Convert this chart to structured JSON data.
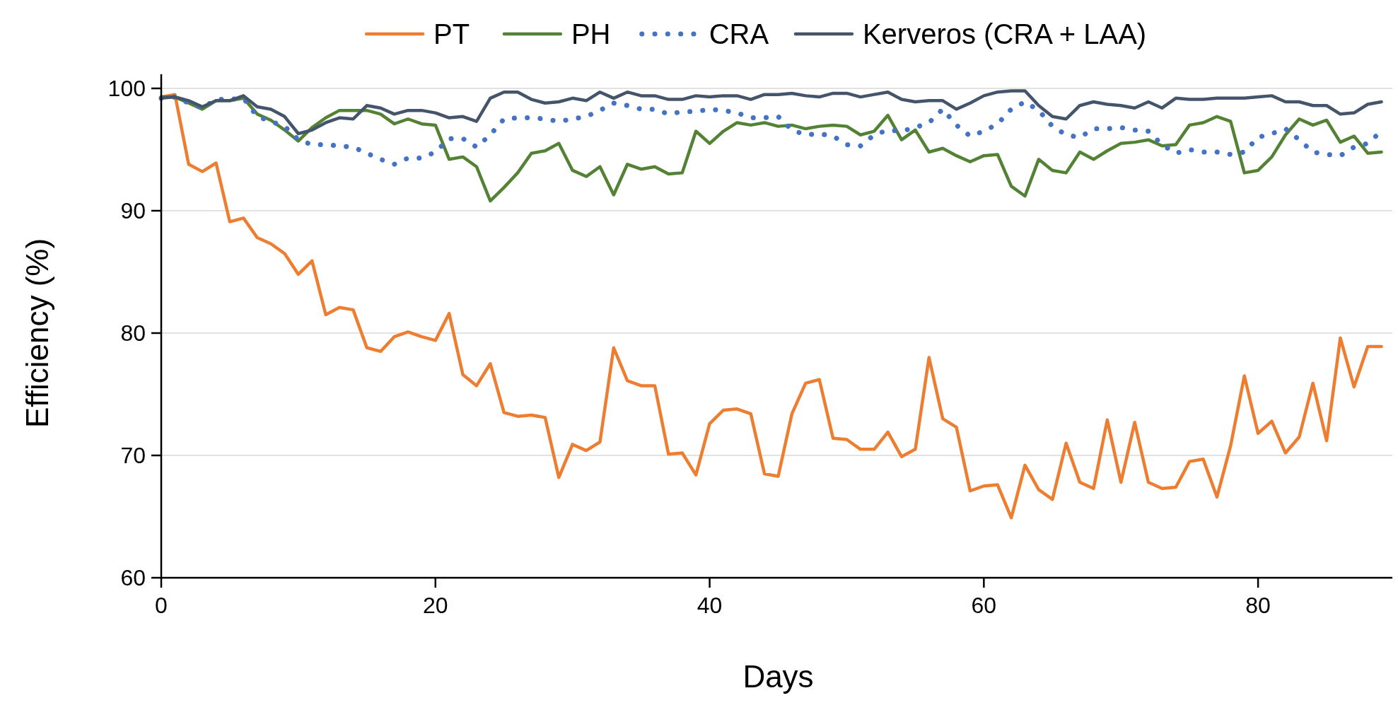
{
  "chart_data": {
    "type": "line",
    "xlabel": "Days",
    "ylabel": "Efficiency (%)",
    "xlim": [
      0,
      90
    ],
    "xticks": [
      0,
      20,
      40,
      60,
      80
    ],
    "ylim": [
      60,
      100
    ],
    "yticks": [
      60,
      70,
      80,
      90,
      100
    ],
    "grid": "y",
    "legend": "top",
    "marker": "none",
    "x": [
      0,
      1,
      2,
      3,
      4,
      5,
      6,
      7,
      8,
      9,
      10,
      11,
      12,
      13,
      14,
      15,
      16,
      17,
      18,
      19,
      20,
      21,
      22,
      23,
      24,
      25,
      26,
      27,
      28,
      29,
      30,
      31,
      32,
      33,
      34,
      35,
      36,
      37,
      38,
      39,
      40,
      41,
      42,
      43,
      44,
      45,
      46,
      47,
      48,
      49,
      50,
      51,
      52,
      53,
      54,
      55,
      56,
      57,
      58,
      59,
      60,
      61,
      62,
      63,
      64,
      65,
      66,
      67,
      68,
      69,
      70,
      71,
      72,
      73,
      74,
      75,
      76,
      77,
      78,
      79,
      80,
      81,
      82,
      83,
      84,
      85,
      86,
      87,
      88,
      89
    ],
    "series": [
      {
        "name": "PT",
        "color": "#ed7d31",
        "line_style": "solid",
        "values": [
          99.3,
          99.5,
          93.8,
          93.2,
          93.9,
          89.1,
          89.4,
          87.8,
          87.3,
          86.5,
          84.8,
          85.9,
          81.5,
          82.1,
          81.9,
          78.8,
          78.5,
          79.7,
          80.1,
          79.7,
          79.4,
          81.6,
          76.6,
          75.7,
          77.5,
          73.5,
          73.2,
          73.3,
          73.1,
          68.2,
          70.9,
          70.4,
          71.1,
          78.8,
          76.1,
          75.7,
          75.7,
          70.1,
          70.2,
          68.4,
          72.6,
          73.7,
          73.8,
          73.4,
          68.5,
          68.3,
          73.4,
          75.9,
          76.2,
          71.4,
          71.3,
          70.5,
          70.5,
          71.9,
          69.9,
          70.5,
          78.0,
          73.0,
          72.3,
          67.1,
          67.5,
          67.6,
          64.9,
          69.2,
          67.2,
          66.4,
          71.0,
          67.8,
          67.3,
          72.9,
          67.8,
          72.7,
          67.8,
          67.3,
          67.4,
          69.5,
          69.7,
          66.6,
          70.8,
          76.5,
          71.8,
          72.8,
          70.2,
          71.5,
          75.9,
          71.2,
          79.6,
          75.6,
          78.9,
          78.9
        ]
      },
      {
        "name": "PH",
        "color": "#548235",
        "line_style": "solid",
        "values": [
          99.3,
          99.3,
          98.8,
          98.3,
          99.0,
          99.0,
          99.2,
          97.9,
          97.4,
          96.6,
          95.7,
          96.8,
          97.6,
          98.2,
          98.2,
          98.2,
          97.9,
          97.1,
          97.5,
          97.1,
          97.0,
          94.2,
          94.4,
          93.6,
          90.8,
          91.9,
          93.1,
          94.7,
          94.9,
          95.5,
          93.3,
          92.8,
          93.6,
          91.3,
          93.8,
          93.4,
          93.6,
          93.0,
          93.1,
          96.5,
          95.5,
          96.5,
          97.2,
          97.0,
          97.2,
          96.9,
          97.0,
          96.7,
          96.9,
          97.0,
          96.9,
          96.2,
          96.5,
          97.8,
          95.8,
          96.6,
          94.8,
          95.1,
          94.5,
          94.0,
          94.5,
          94.6,
          92.0,
          91.2,
          94.2,
          93.3,
          93.1,
          94.8,
          94.2,
          94.9,
          95.5,
          95.6,
          95.8,
          95.3,
          95.4,
          97.0,
          97.2,
          97.7,
          97.3,
          93.1,
          93.3,
          94.4,
          96.2,
          97.5,
          97.0,
          97.4,
          95.6,
          96.1,
          94.7,
          94.8
        ]
      },
      {
        "name": "CRA",
        "color": "#4472c4",
        "line_style": "dotted",
        "values": [
          99.2,
          99.3,
          98.8,
          98.4,
          99.1,
          99.1,
          99.2,
          97.7,
          97.3,
          96.9,
          95.8,
          95.4,
          95.4,
          95.3,
          95.2,
          94.7,
          94.2,
          93.8,
          94.3,
          94.3,
          94.8,
          95.9,
          95.9,
          95.2,
          96.2,
          97.5,
          97.6,
          97.6,
          97.5,
          97.3,
          97.5,
          97.7,
          98.2,
          98.8,
          98.6,
          98.3,
          98.3,
          97.9,
          98.1,
          98.1,
          98.3,
          98.2,
          98.0,
          97.6,
          97.6,
          97.7,
          96.6,
          96.2,
          96.3,
          96.1,
          95.4,
          95.3,
          96.2,
          96.6,
          96.5,
          96.8,
          97.2,
          98.3,
          97.0,
          96.1,
          96.5,
          97.1,
          98.3,
          98.9,
          98.2,
          96.9,
          96.2,
          96.0,
          96.7,
          96.7,
          96.8,
          96.6,
          96.5,
          95.4,
          94.7,
          95.0,
          94.8,
          94.8,
          94.6,
          94.8,
          96.0,
          96.3,
          96.7,
          95.8,
          94.8,
          94.6,
          94.5,
          95.2,
          95.5,
          96.5
        ]
      },
      {
        "name": "Kerveros (CRA + LAA)",
        "color": "#44546a",
        "line_style": "solid",
        "values": [
          99.2,
          99.3,
          99.0,
          98.5,
          99.0,
          99.0,
          99.4,
          98.5,
          98.3,
          97.7,
          96.3,
          96.6,
          97.2,
          97.6,
          97.5,
          98.6,
          98.4,
          97.9,
          98.2,
          98.2,
          98.0,
          97.6,
          97.7,
          97.3,
          99.2,
          99.7,
          99.7,
          99.1,
          98.8,
          98.9,
          99.2,
          99.0,
          99.7,
          99.2,
          99.7,
          99.4,
          99.4,
          99.1,
          99.1,
          99.4,
          99.3,
          99.4,
          99.4,
          99.1,
          99.5,
          99.5,
          99.6,
          99.4,
          99.3,
          99.6,
          99.6,
          99.3,
          99.5,
          99.7,
          99.1,
          98.9,
          99.0,
          99.0,
          98.3,
          98.8,
          99.4,
          99.7,
          99.8,
          99.8,
          98.6,
          97.7,
          97.5,
          98.6,
          98.9,
          98.7,
          98.6,
          98.4,
          98.9,
          98.4,
          99.2,
          99.1,
          99.1,
          99.2,
          99.2,
          99.2,
          99.3,
          99.4,
          98.9,
          98.9,
          98.6,
          98.6,
          97.9,
          98.0,
          98.7,
          98.9
        ]
      }
    ]
  }
}
